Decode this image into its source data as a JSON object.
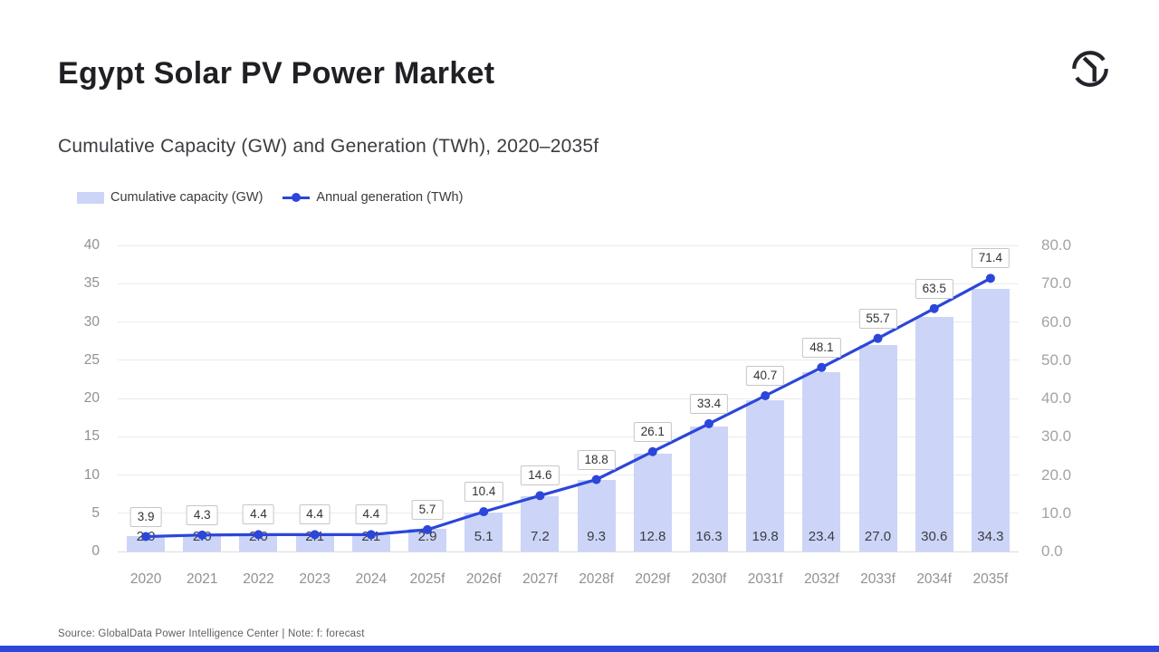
{
  "header": {
    "title": "Egypt Solar PV Power Market",
    "subtitle": "Cumulative Capacity (GW) and Generation (TWh), 2020–2035f"
  },
  "legend": {
    "bar_label": "Cumulative capacity (GW)",
    "line_label": "Annual generation (TWh)"
  },
  "chart_data": {
    "type": "bar+line",
    "categories": [
      "2020",
      "2021",
      "2022",
      "2023",
      "2024",
      "2025f",
      "2026f",
      "2027f",
      "2028f",
      "2029f",
      "2030f",
      "2031f",
      "2032f",
      "2033f",
      "2034f",
      "2035f"
    ],
    "series": [
      {
        "name": "Cumulative capacity (GW)",
        "type": "bar",
        "axis": "left",
        "color": "#ccd5f7",
        "values": [
          2.0,
          2.0,
          2.0,
          2.1,
          2.1,
          2.9,
          5.1,
          7.2,
          9.3,
          12.8,
          16.3,
          19.8,
          23.4,
          27.0,
          30.6,
          34.3
        ],
        "labels": [
          "2.0",
          "2.0",
          "2.0",
          "2.1",
          "2.1",
          "2.9",
          "5.1",
          "7.2",
          "9.3",
          "12.8",
          "16.3",
          "19.8",
          "23.4",
          "27.0",
          "30.6",
          "34.3"
        ]
      },
      {
        "name": "Annual generation (TWh)",
        "type": "line",
        "axis": "right",
        "color": "#2b46d9",
        "values": [
          3.9,
          4.3,
          4.4,
          4.4,
          4.4,
          5.7,
          10.4,
          14.6,
          18.8,
          26.1,
          33.4,
          40.7,
          48.1,
          55.7,
          63.5,
          71.4
        ],
        "labels": [
          "3.9",
          "4.3",
          "4.4",
          "4.4",
          "4.4",
          "5.7",
          "10.4",
          "14.6",
          "18.8",
          "26.1",
          "33.4",
          "40.7",
          "48.1",
          "55.7",
          "63.5",
          "71.4"
        ]
      }
    ],
    "left_axis": {
      "range": [
        0,
        40
      ],
      "ticks": [
        "0",
        "5",
        "10",
        "15",
        "20",
        "25",
        "30",
        "35",
        "40"
      ]
    },
    "right_axis": {
      "range": [
        0,
        80
      ],
      "ticks": [
        "0.0",
        "10.0",
        "20.0",
        "30.0",
        "40.0",
        "50.0",
        "60.0",
        "70.0",
        "80.0"
      ]
    },
    "grid": true,
    "legend_position": "top-left"
  },
  "footer": {
    "source": "Source: GlobalData Power Intelligence Center | Note: f: forecast"
  },
  "branding": {
    "logo_name": "globaldata-logo",
    "accent_color": "#2b46d9",
    "bar_fill": "#ccd5f7"
  }
}
